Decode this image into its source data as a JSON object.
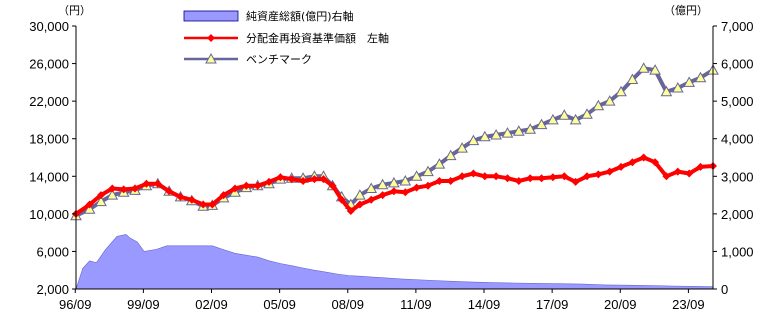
{
  "chart_data": {
    "type": "line",
    "left_axis": {
      "unit": "（円）",
      "ticks": [
        "2,000",
        "6,000",
        "10,000",
        "14,000",
        "18,000",
        "22,000",
        "26,000",
        "30,000"
      ],
      "range": [
        2000,
        30000
      ]
    },
    "right_axis": {
      "unit": "（億円）",
      "ticks": [
        "0",
        "1,000",
        "2,000",
        "3,000",
        "4,000",
        "5,000",
        "6,000",
        "7,000"
      ],
      "range": [
        0,
        7000
      ]
    },
    "x_axis": {
      "ticks": [
        "96/09",
        "99/09",
        "02/09",
        "05/09",
        "08/09",
        "11/09",
        "14/09",
        "17/09",
        "20/09",
        "23/09"
      ],
      "range": [
        1996.7,
        2024.75
      ]
    },
    "legend": [
      {
        "label": "純資産総額(億円)右軸",
        "type": "area"
      },
      {
        "label": "分配金再投資基準価額　左軸",
        "type": "line"
      },
      {
        "label": "ベンチマーク",
        "type": "line"
      }
    ],
    "series": [
      {
        "name": "純資産総額(億円)右軸",
        "axis": "right",
        "color": "#9999ff",
        "x": [
          1996.7,
          1997.0,
          1997.3,
          1997.6,
          1998.0,
          1998.5,
          1998.9,
          1999.1,
          1999.4,
          1999.7,
          2000.2,
          2000.7,
          2001.2,
          2001.7,
          2002.2,
          2002.7,
          2003.2,
          2003.7,
          2004.2,
          2004.7,
          2005.2,
          2005.7,
          2006.2,
          2006.7,
          2007.2,
          2007.7,
          2008.2,
          2008.7,
          2009.2,
          2010.0,
          2011.0,
          2012.0,
          2013.0,
          2014.0,
          2015.0,
          2016.0,
          2017.0,
          2018.0,
          2019.0,
          2020.0,
          2021.0,
          2022.0,
          2023.0,
          2024.0,
          2024.75
        ],
        "y": [
          0,
          550,
          750,
          700,
          1050,
          1400,
          1450,
          1350,
          1250,
          1000,
          1050,
          1150,
          1150,
          1150,
          1150,
          1150,
          1050,
          950,
          900,
          850,
          750,
          680,
          620,
          560,
          500,
          450,
          400,
          360,
          340,
          310,
          270,
          240,
          210,
          190,
          170,
          160,
          150,
          140,
          130,
          110,
          100,
          90,
          80,
          70,
          60
        ]
      },
      {
        "name": "分配金再投資基準価額　左軸",
        "axis": "left",
        "color": "#ff0000",
        "x": [
          1996.7,
          1997.3,
          1997.8,
          1998.3,
          1998.8,
          1999.3,
          1999.8,
          2000.3,
          2000.8,
          2001.3,
          2001.8,
          2002.3,
          2002.7,
          2003.2,
          2003.7,
          2004.2,
          2004.7,
          2005.2,
          2005.7,
          2006.2,
          2006.7,
          2007.2,
          2007.6,
          2008.0,
          2008.4,
          2008.8,
          2009.2,
          2009.7,
          2010.2,
          2010.7,
          2011.2,
          2011.7,
          2012.2,
          2012.7,
          2013.2,
          2013.7,
          2014.2,
          2014.7,
          2015.2,
          2015.7,
          2016.2,
          2016.7,
          2017.2,
          2017.7,
          2018.2,
          2018.7,
          2019.2,
          2019.7,
          2020.2,
          2020.7,
          2021.2,
          2021.7,
          2022.2,
          2022.7,
          2023.2,
          2023.7,
          2024.2,
          2024.75
        ],
        "y": [
          10000,
          11000,
          12000,
          12700,
          12600,
          12700,
          13200,
          13200,
          12400,
          11800,
          11500,
          11000,
          11000,
          12000,
          12700,
          13000,
          13000,
          13400,
          13900,
          13700,
          13500,
          13700,
          13700,
          13000,
          11500,
          10300,
          11000,
          11500,
          12000,
          12400,
          12300,
          12800,
          13000,
          13500,
          13500,
          14000,
          14300,
          14000,
          14000,
          13800,
          13500,
          13800,
          13800,
          13900,
          14000,
          13400,
          14000,
          14200,
          14500,
          15000,
          15500,
          16000,
          15500,
          14000,
          14500,
          14300,
          15000,
          15100
        ]
      },
      {
        "name": "ベンチマーク",
        "axis": "left",
        "color": "#666699",
        "marker_fill": "#ffff99",
        "x": [
          1996.7,
          1997.3,
          1997.8,
          1998.3,
          1998.8,
          1999.3,
          1999.8,
          2000.3,
          2000.8,
          2001.3,
          2001.8,
          2002.3,
          2002.7,
          2003.2,
          2003.7,
          2004.2,
          2004.7,
          2005.2,
          2005.7,
          2006.2,
          2006.7,
          2007.2,
          2007.6,
          2008.0,
          2008.4,
          2008.8,
          2009.2,
          2009.7,
          2010.2,
          2010.7,
          2011.2,
          2011.7,
          2012.2,
          2012.7,
          2013.2,
          2013.7,
          2014.2,
          2014.7,
          2015.2,
          2015.7,
          2016.2,
          2016.7,
          2017.2,
          2017.7,
          2018.2,
          2018.7,
          2019.2,
          2019.7,
          2020.2,
          2020.7,
          2021.2,
          2021.7,
          2022.2,
          2022.7,
          2023.2,
          2023.7,
          2024.2,
          2024.75
        ],
        "y": [
          9800,
          10500,
          11300,
          12000,
          12300,
          12500,
          13000,
          13200,
          12400,
          11800,
          11400,
          10800,
          10900,
          11700,
          12300,
          12800,
          13000,
          13200,
          13700,
          13800,
          13800,
          14000,
          14000,
          13000,
          11800,
          11000,
          12000,
          12700,
          13100,
          13300,
          13500,
          14000,
          14500,
          15300,
          16200,
          17000,
          17800,
          18200,
          18400,
          18600,
          18800,
          19000,
          19500,
          20000,
          20500,
          20000,
          20600,
          21500,
          22000,
          23000,
          24300,
          25500,
          25300,
          23000,
          23400,
          24000,
          24500,
          25300
        ]
      }
    ]
  }
}
